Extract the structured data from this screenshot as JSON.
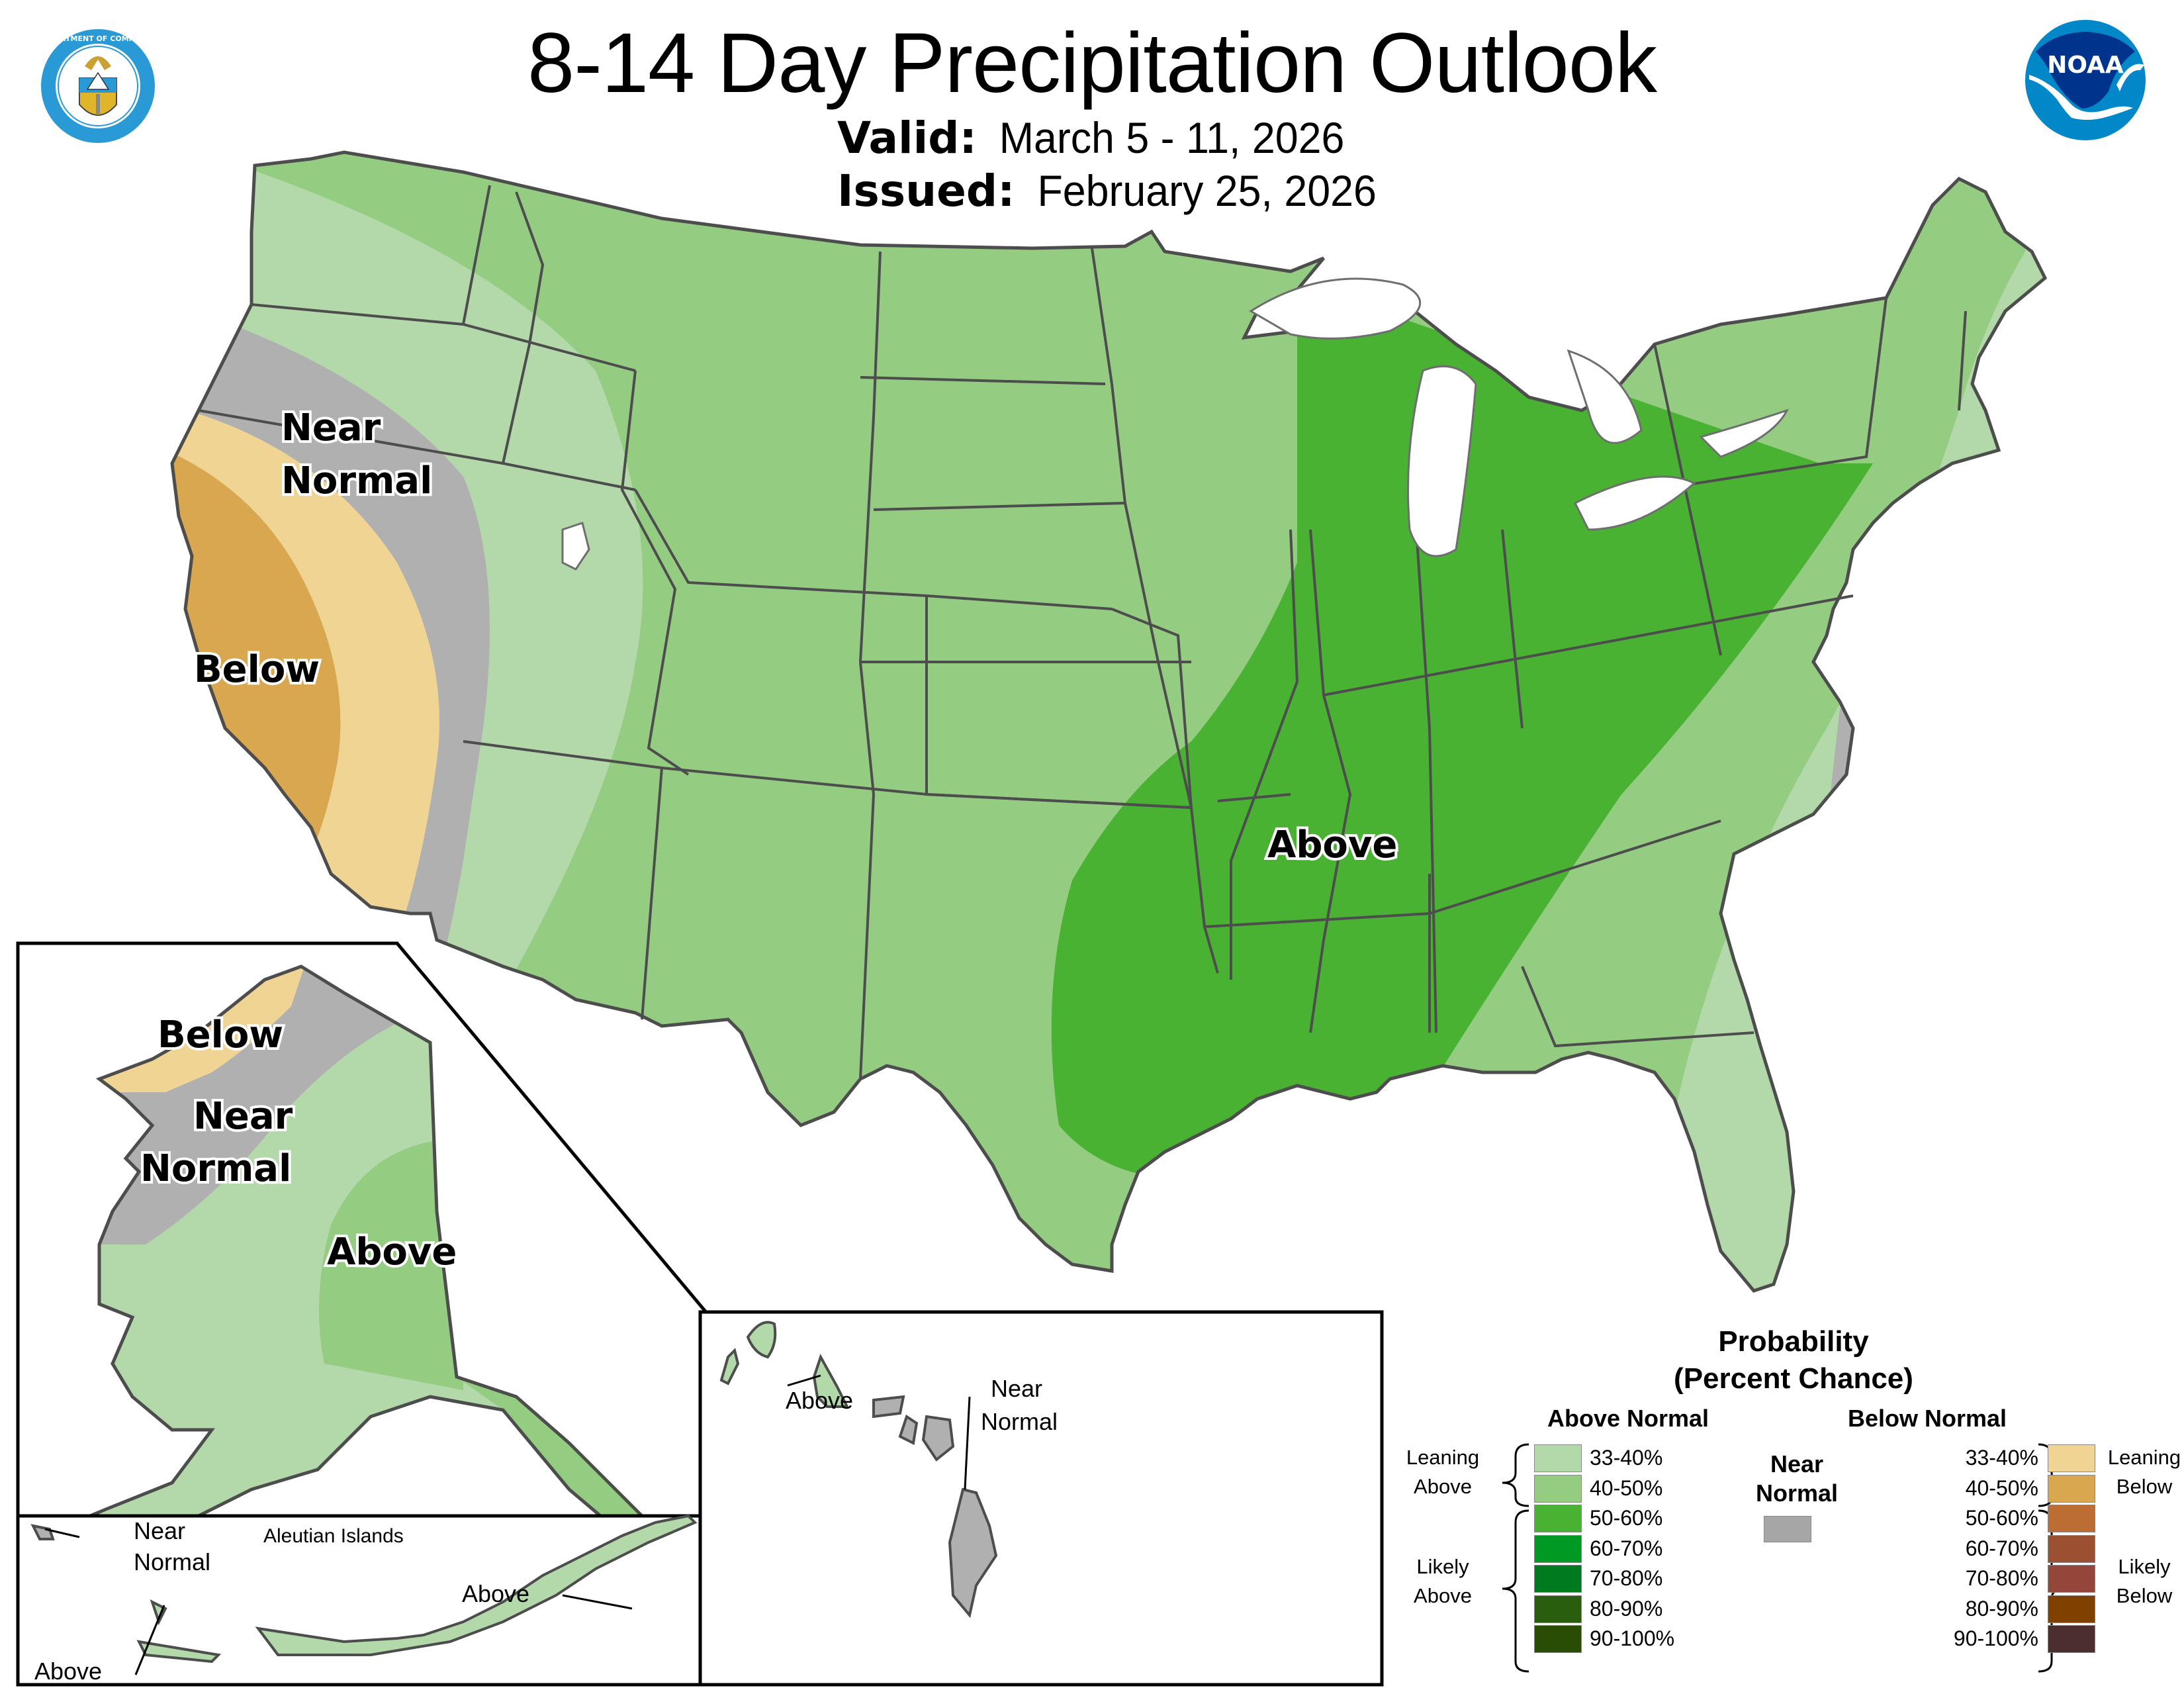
{
  "header": {
    "title": "8-14 Day Precipitation Outlook",
    "valid_label": "Valid:",
    "valid_value": "March 5 - 11, 2026",
    "issued_label": "Issued:",
    "issued_value": "February 25, 2026"
  },
  "logos": {
    "left": "Department of Commerce seal",
    "left_ring_top": "DEPARTMENT OF COMMERCE",
    "left_ring_bottom": "UNITED STATES OF AMERICA",
    "right": "NOAA",
    "right_text": "NOAA"
  },
  "map": {
    "conus_labels": [
      {
        "text_line1": "Near",
        "text_line2": "Normal",
        "category": "near-normal"
      },
      {
        "text": "Below",
        "category": "below"
      },
      {
        "text": "Above",
        "category": "above"
      }
    ],
    "conus": {
      "near_normal_line1": "Near",
      "near_normal_line2": "Normal",
      "below": "Below",
      "above": "Above"
    },
    "alaska": {
      "below": "Below",
      "near_normal_line1": "Near",
      "near_normal_line2": "Normal",
      "above": "Above"
    },
    "aleutians": {
      "title": "Aleutian Islands",
      "near_normal_line1": "Near",
      "near_normal_line2": "Normal",
      "above_west": "Above",
      "above_east": "Above"
    },
    "hawaii": {
      "above": "Above",
      "near_normal_line1": "Near",
      "near_normal_line2": "Normal"
    }
  },
  "legend": {
    "title_line1": "Probability",
    "title_line2": "(Percent Chance)",
    "above_header": "Above Normal",
    "below_header": "Below Normal",
    "near_line1": "Near",
    "near_line2": "Normal",
    "near_color": "#a6a6a6",
    "leaning_above_line1": "Leaning",
    "leaning_above_line2": "Above",
    "likely_above_line1": "Likely",
    "likely_above_line2": "Above",
    "leaning_below_line1": "Leaning",
    "leaning_below_line2": "Below",
    "likely_below_line1": "Likely",
    "likely_below_line2": "Below",
    "above": [
      {
        "range": "33-40%",
        "color": "#b3d9ab"
      },
      {
        "range": "40-50%",
        "color": "#94cc82"
      },
      {
        "range": "50-60%",
        "color": "#4ab233"
      },
      {
        "range": "60-70%",
        "color": "#009924"
      },
      {
        "range": "70-80%",
        "color": "#007a1f"
      },
      {
        "range": "80-90%",
        "color": "#2a5e0f"
      },
      {
        "range": "90-100%",
        "color": "#294d05"
      }
    ],
    "below": [
      {
        "range": "33-40%",
        "color": "#f0d493"
      },
      {
        "range": "40-50%",
        "color": "#d8a750"
      },
      {
        "range": "50-60%",
        "color": "#bb6d33"
      },
      {
        "range": "60-70%",
        "color": "#9b5031"
      },
      {
        "range": "70-80%",
        "color": "#934639"
      },
      {
        "range": "80-90%",
        "color": "#804000"
      },
      {
        "range": "90-100%",
        "color": "#4d2e2e"
      }
    ]
  },
  "chart_data": {
    "type": "map",
    "title": "8-14 Day Precipitation Outlook",
    "subtitle": "Valid: March 5 - 11, 2026 | Issued: February 25, 2026",
    "regions": [
      {
        "area": "CONUS - California coast",
        "category": "Below Normal",
        "probability": "40-50%"
      },
      {
        "area": "CONUS - Northern/interior California, western Nevada, SW Oregon",
        "category": "Below Normal",
        "probability": "33-40%"
      },
      {
        "area": "CONUS - Western Nevada/Oregon band",
        "category": "Near Normal"
      },
      {
        "area": "CONUS - Pacific NW coast, Idaho, Utah, Arizona",
        "category": "Above Normal",
        "probability": "33-40%"
      },
      {
        "area": "CONUS - Rockies, Plains, Texas, Upper Midwest, Northeast",
        "category": "Above Normal",
        "probability": "40-50%"
      },
      {
        "area": "CONUS - Mississippi/Ohio Valleys, Great Lakes, Lower Mississippi",
        "category": "Above Normal",
        "probability": "50-60%"
      },
      {
        "area": "CONUS - Southeast coast, Florida, New England coast",
        "category": "Above Normal",
        "probability": "33-40%"
      },
      {
        "area": "CONUS - Eastern North Carolina",
        "category": "Near Normal"
      },
      {
        "area": "Alaska - Northwest",
        "category": "Below Normal",
        "probability": "33-40%"
      },
      {
        "area": "Alaska - West/North",
        "category": "Near Normal"
      },
      {
        "area": "Alaska - Interior/Southwest",
        "category": "Above Normal",
        "probability": "33-40%"
      },
      {
        "area": "Alaska - Southcentral/Southeast",
        "category": "Above Normal",
        "probability": "40-50%"
      },
      {
        "area": "Aleutians - Far west",
        "category": "Near Normal"
      },
      {
        "area": "Aleutians - Central/East",
        "category": "Above Normal",
        "probability": "33-40%"
      },
      {
        "area": "Hawaii - Kauai, Oahu",
        "category": "Above Normal",
        "probability": "33-40%"
      },
      {
        "area": "Hawaii - Maui County, Big Island",
        "category": "Near Normal"
      }
    ],
    "legend": {
      "above": [
        "33-40%",
        "40-50%",
        "50-60%",
        "60-70%",
        "70-80%",
        "80-90%",
        "90-100%"
      ],
      "below": [
        "33-40%",
        "40-50%",
        "50-60%",
        "60-70%",
        "70-80%",
        "80-90%",
        "90-100%"
      ],
      "near_normal": "Near Normal"
    }
  }
}
